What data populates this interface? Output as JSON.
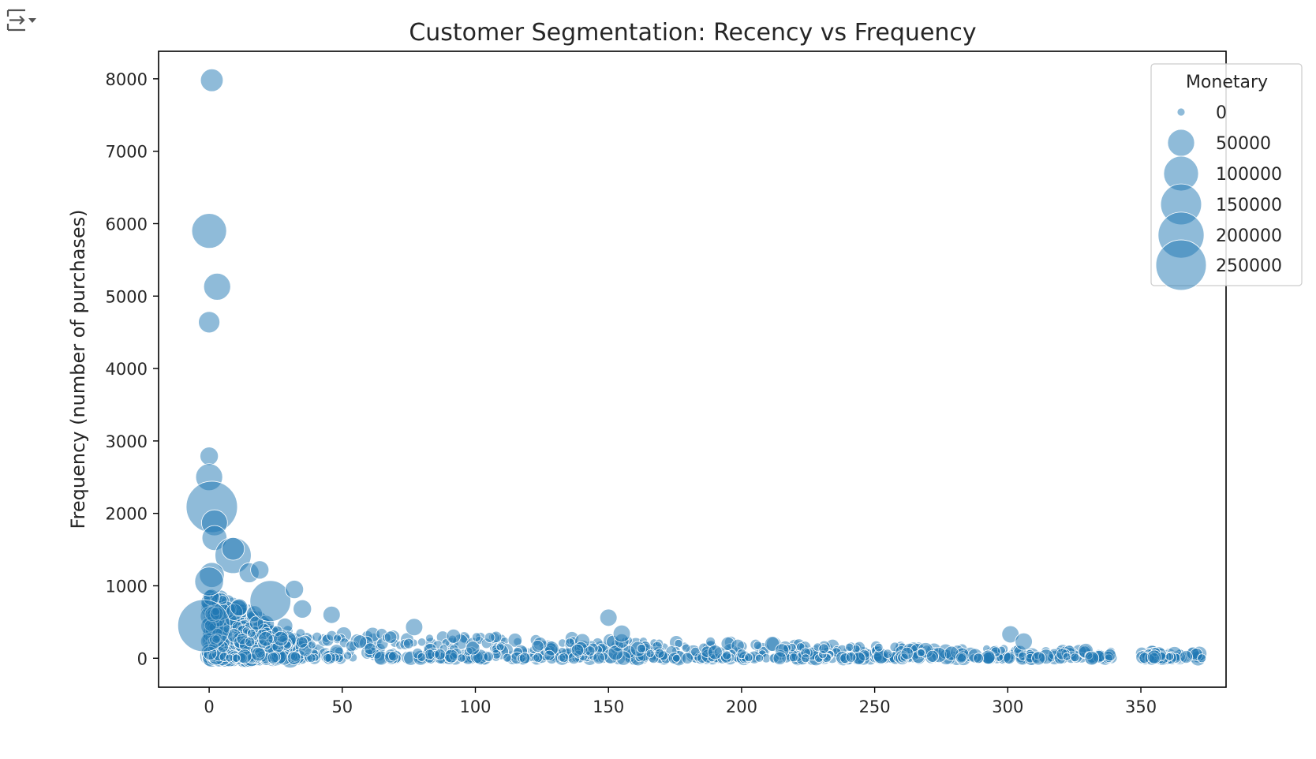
{
  "toolbar": {
    "icon": "output-collapse-icon"
  },
  "colors": {
    "point": "#1f77b4",
    "point_edge": "#ffffff",
    "frame": "#000000",
    "legend_border": "#cccccc"
  },
  "chart_data": {
    "type": "scatter",
    "title": "Customer Segmentation: Recency vs Frequency",
    "xlabel": "",
    "ylabel": "Frequency (number of purchases)",
    "xlim": [
      -19,
      382
    ],
    "ylim": [
      -400,
      8380
    ],
    "xticks": [
      0,
      50,
      100,
      150,
      200,
      250,
      300,
      350
    ],
    "yticks": [
      0,
      1000,
      2000,
      3000,
      4000,
      5000,
      6000,
      7000,
      8000
    ],
    "size_variable": "Monetary",
    "legend": {
      "title": "Monetary",
      "position": "top-right",
      "entries": [
        {
          "label": "0",
          "value": 0
        },
        {
          "label": "50000",
          "value": 50000
        },
        {
          "label": "100000",
          "value": 100000
        },
        {
          "label": "150000",
          "value": 150000
        },
        {
          "label": "200000",
          "value": 200000
        },
        {
          "label": "250000",
          "value": 250000
        }
      ]
    },
    "notable_points": [
      {
        "x": 1,
        "y": 7980,
        "monetary": 30000
      },
      {
        "x": 0,
        "y": 5900,
        "monetary": 100000
      },
      {
        "x": 3,
        "y": 5130,
        "monetary": 50000
      },
      {
        "x": 0,
        "y": 4640,
        "monetary": 25000
      },
      {
        "x": 0,
        "y": 2790,
        "monetary": 15000
      },
      {
        "x": 0,
        "y": 2500,
        "monetary": 50000
      },
      {
        "x": 1,
        "y": 2090,
        "monetary": 260000
      },
      {
        "x": 2,
        "y": 1870,
        "monetary": 45000
      },
      {
        "x": 2,
        "y": 1660,
        "monetary": 40000
      },
      {
        "x": 9,
        "y": 1420,
        "monetary": 110000
      },
      {
        "x": 9,
        "y": 1510,
        "monetary": 30000
      },
      {
        "x": 15,
        "y": 1180,
        "monetary": 20000
      },
      {
        "x": 19,
        "y": 1220,
        "monetary": 15000
      },
      {
        "x": 1,
        "y": 1150,
        "monetary": 40000
      },
      {
        "x": 0,
        "y": 1060,
        "monetary": 60000
      },
      {
        "x": 23,
        "y": 790,
        "monetary": 150000
      },
      {
        "x": 32,
        "y": 950,
        "monetary": 15000
      },
      {
        "x": 35,
        "y": 680,
        "monetary": 15000
      },
      {
        "x": -2,
        "y": 450,
        "monetary": 270000
      },
      {
        "x": 46,
        "y": 600,
        "monetary": 12000
      },
      {
        "x": 77,
        "y": 430,
        "monetary": 12000
      },
      {
        "x": 150,
        "y": 560,
        "monetary": 12000
      },
      {
        "x": 155,
        "y": 340,
        "monetary": 12000
      },
      {
        "x": 301,
        "y": 330,
        "monetary": 12000
      },
      {
        "x": 306,
        "y": 230,
        "monetary": 12000
      }
    ],
    "bulk_band": {
      "description_free": true,
      "x_range": [
        0,
        373
      ],
      "gap_x": [
        339,
        350
      ],
      "y_range": [
        0,
        400
      ],
      "typical_monetary": [
        0,
        8000
      ]
    }
  }
}
